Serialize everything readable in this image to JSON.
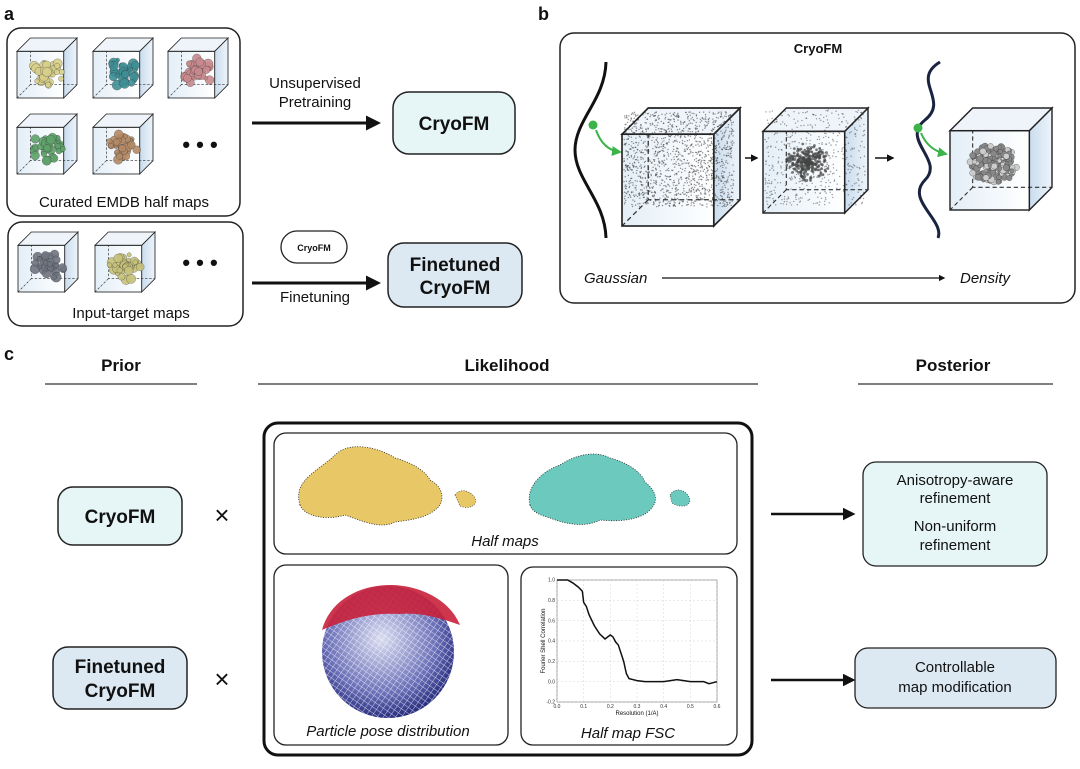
{
  "panel_a": {
    "label": "a",
    "pretrain_caption": "Curated EMDB half maps",
    "finetune_caption": "Input-target maps",
    "ellipsis": "• • •",
    "arrow1_label_line1": "Unsupervised",
    "arrow1_label_line2": "Pretraining",
    "arrow2_label": "Finetuning",
    "small_model_label": "CryoFM",
    "model_label": "CryoFM",
    "finetuned_line1": "Finetuned",
    "finetuned_line2": "CryoFM",
    "map_colors": [
      "#d8d08a",
      "#3f8f96",
      "#c98a8e",
      "#5fa26a",
      "#b48a66",
      "#6f7480",
      "#c7c27a"
    ]
  },
  "panel_b": {
    "label": "b",
    "title": "CryoFM",
    "start_label": "Gaussian",
    "end_label": "Density",
    "accent_color": "#3cb44a"
  },
  "panel_c": {
    "label": "c",
    "prior_header": "Prior",
    "likelihood_header": "Likelihood",
    "posterior_header": "Posterior",
    "prior_1": "CryoFM",
    "prior_2_line1": "Finetuned",
    "prior_2_line2": "CryoFM",
    "times_symbol": "×",
    "half_maps_caption": "Half maps",
    "pose_caption": "Particle pose distribution",
    "fsc_caption": "Half map FSC",
    "posterior_1": [
      "Anisotropy-aware",
      "refinement",
      "Non-uniform",
      "refinement"
    ],
    "posterior_2": [
      "Controllable",
      "map modification"
    ],
    "colors": {
      "cryofm_fill": "#e6f5f6",
      "finetuned_fill": "#dce9f3",
      "half_map_1": "#e8c766",
      "half_map_2": "#6cc9bd"
    }
  },
  "chart_data": {
    "type": "line",
    "title": "",
    "xlabel": "Resolution (1/A)",
    "ylabel": "Fourier Shell Correlation",
    "xlim": [
      0.0,
      0.6
    ],
    "ylim": [
      -0.2,
      1.0
    ],
    "grid": true,
    "x_ticks": [
      "0.0",
      "0.1",
      "0.2",
      "0.3",
      "0.4",
      "0.5",
      "0.6"
    ],
    "y_ticks": [
      "-0.2",
      "0.0",
      "0.2",
      "0.4",
      "0.6",
      "0.8",
      "1.0"
    ],
    "x": [
      0,
      0.04,
      0.06,
      0.08,
      0.095,
      0.1,
      0.11,
      0.12,
      0.14,
      0.16,
      0.18,
      0.2,
      0.21,
      0.22,
      0.23,
      0.25,
      0.26,
      0.27,
      0.3,
      0.33,
      0.35,
      0.4,
      0.45,
      0.5,
      0.55,
      0.57,
      0.6
    ],
    "values": [
      1.0,
      1.0,
      0.97,
      0.93,
      0.89,
      0.78,
      0.74,
      0.66,
      0.55,
      0.47,
      0.42,
      0.46,
      0.44,
      0.39,
      0.36,
      0.2,
      0.08,
      0.03,
      0.01,
      0.0,
      0.0,
      0.0,
      0.02,
      0.0,
      0.0,
      -0.02,
      0.0
    ]
  }
}
